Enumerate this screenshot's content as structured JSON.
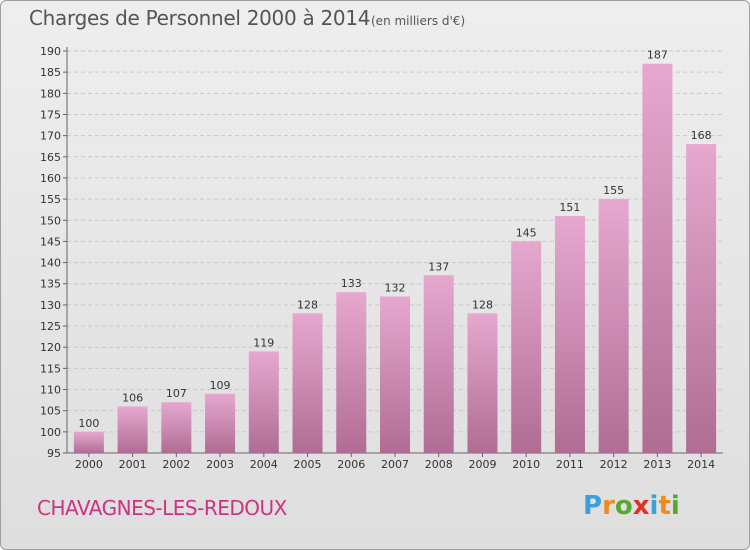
{
  "title": "Charges de Personnel 2000 à 2014",
  "subtitle": "(en milliers d'€)",
  "commune": "CHAVAGNES-LES-REDOUX",
  "logo": {
    "letters": [
      "P",
      "r",
      "o",
      "x",
      "i",
      "t",
      "i"
    ],
    "colors": [
      "#3aa0dc",
      "#f08a1c",
      "#56a830",
      "#e0302a",
      "#3aa0dc",
      "#f08a1c",
      "#56a830"
    ]
  },
  "colors": {
    "bar_top": "#e6a8cf",
    "bar_bottom": "#b06d94",
    "commune_text": "#cc3380"
  },
  "chart_data": {
    "type": "bar",
    "categories": [
      "2000",
      "2001",
      "2002",
      "2003",
      "2004",
      "2005",
      "2006",
      "2007",
      "2008",
      "2009",
      "2010",
      "2011",
      "2012",
      "2013",
      "2014"
    ],
    "values": [
      100,
      106,
      107,
      109,
      119,
      128,
      133,
      132,
      137,
      128,
      145,
      151,
      155,
      187,
      168
    ],
    "ylim": [
      95,
      190
    ],
    "yticks": [
      95,
      100,
      105,
      110,
      115,
      120,
      125,
      130,
      135,
      140,
      145,
      150,
      155,
      160,
      165,
      170,
      175,
      180,
      185,
      190
    ],
    "grid": true,
    "legend": "none"
  }
}
